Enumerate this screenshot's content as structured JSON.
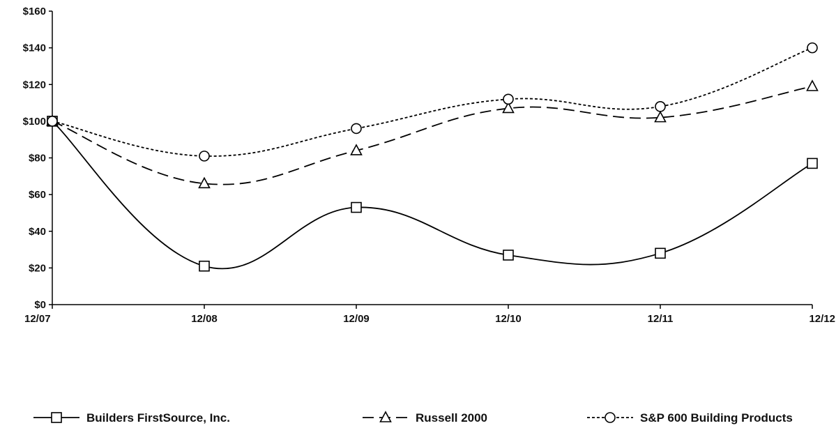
{
  "chart_data": {
    "type": "line",
    "categories": [
      "12/07",
      "12/08",
      "12/09",
      "12/10",
      "12/11",
      "12/12"
    ],
    "ylim": [
      0,
      160
    ],
    "yticks": [
      0,
      20,
      40,
      60,
      80,
      100,
      120,
      140,
      160
    ],
    "ytick_labels": [
      "$0",
      "$20",
      "$40",
      "$60",
      "$80",
      "$100",
      "$120",
      "$140",
      "$160"
    ],
    "grid": false,
    "legend_position": "bottom",
    "series": [
      {
        "name": "Builders FirstSource, Inc.",
        "values": [
          100,
          21,
          53,
          27,
          28,
          77
        ],
        "marker": "square",
        "dash": "solid",
        "color": "#000000"
      },
      {
        "name": "Russell 2000",
        "values": [
          100,
          66,
          84,
          107,
          102,
          119
        ],
        "marker": "triangle",
        "dash": "long-dash",
        "color": "#000000"
      },
      {
        "name": "S&P 600 Building Products",
        "values": [
          100,
          81,
          96,
          112,
          108,
          140
        ],
        "marker": "circle",
        "dash": "short-dash",
        "color": "#000000"
      }
    ]
  }
}
